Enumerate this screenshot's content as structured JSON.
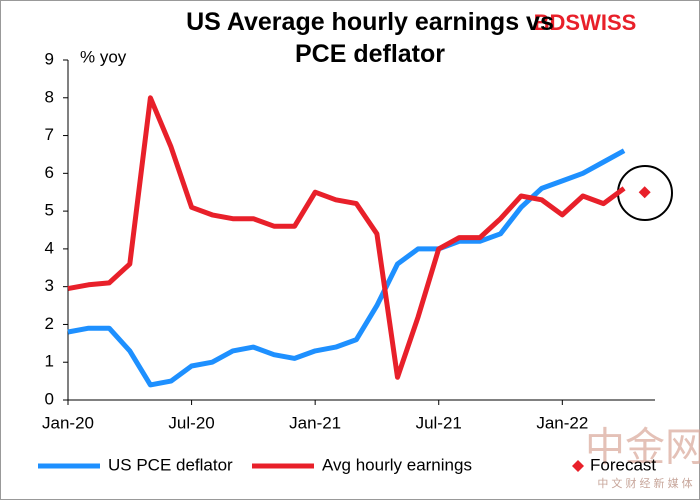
{
  "chart_data": {
    "type": "line",
    "title": "US Average hourly earnings vs PCE deflator",
    "logo": "BDSWISS",
    "watermark": "中金网",
    "watermark_sub": "中 文 财 经 新 媒 体",
    "y_axis_label": "% yoy",
    "categories": [
      "Jan-20",
      null,
      null,
      null,
      null,
      null,
      "Jul-20",
      null,
      null,
      null,
      null,
      null,
      "Jan-21",
      null,
      null,
      null,
      null,
      null,
      "Jul-21",
      null,
      null,
      null,
      null,
      null,
      "Jan-22",
      null,
      null,
      null,
      null
    ],
    "series": [
      {
        "name": "US PCE deflator",
        "color": "#1e90ff",
        "marker": "none",
        "values": [
          1.8,
          1.9,
          1.9,
          1.3,
          0.4,
          0.5,
          0.9,
          1.0,
          1.3,
          1.4,
          1.2,
          1.1,
          1.3,
          1.4,
          1.6,
          2.5,
          3.6,
          4.0,
          4.0,
          4.2,
          4.2,
          4.4,
          5.1,
          5.6,
          5.8,
          6.0,
          6.3,
          6.6,
          null
        ]
      },
      {
        "name": "Avg hourly earnings",
        "color": "#e8202a",
        "marker": "none",
        "values": [
          2.95,
          3.05,
          3.1,
          3.6,
          8.0,
          6.7,
          5.1,
          4.9,
          4.8,
          4.8,
          4.6,
          4.6,
          5.5,
          5.3,
          5.2,
          4.4,
          0.6,
          2.2,
          4.0,
          4.3,
          4.3,
          4.8,
          5.4,
          5.3,
          4.9,
          5.4,
          5.2,
          5.6,
          null
        ]
      },
      {
        "name": "Forecast",
        "color": "#e8202a",
        "marker": "diamond",
        "values": [
          null,
          null,
          null,
          null,
          null,
          null,
          null,
          null,
          null,
          null,
          null,
          null,
          null,
          null,
          null,
          null,
          null,
          null,
          null,
          null,
          null,
          null,
          null,
          null,
          null,
          null,
          null,
          null,
          5.5
        ]
      }
    ],
    "ylim": [
      0,
      9
    ],
    "yticks": [
      0,
      1,
      2,
      3,
      4,
      5,
      6,
      7,
      8,
      9
    ],
    "grid": false
  }
}
